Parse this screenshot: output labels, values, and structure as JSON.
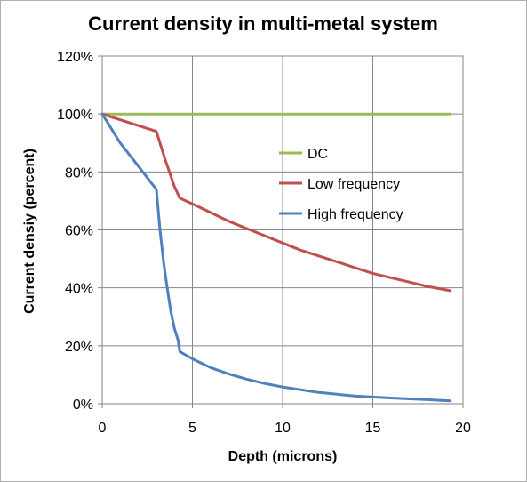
{
  "chart_data": {
    "type": "line",
    "title": "Current density in multi-metal system",
    "xlabel": "Depth (microns)",
    "ylabel": "Current densiy (percent)",
    "xlim": [
      0,
      20
    ],
    "ylim": [
      0,
      120
    ],
    "x_ticks": [
      "0",
      "5",
      "10",
      "15",
      "20"
    ],
    "y_ticks": [
      "0%",
      "20%",
      "40%",
      "60%",
      "80%",
      "100%",
      "120%"
    ],
    "grid": true,
    "legend_position": "center-right",
    "series": [
      {
        "name": "DC",
        "color": "#9bbb59",
        "x": [
          0,
          19.3
        ],
        "y": [
          100,
          100
        ]
      },
      {
        "name": "Low frequency",
        "color": "#c0504d",
        "x": [
          0,
          1,
          2,
          3,
          3.5,
          4,
          4.3,
          5,
          6,
          7,
          8,
          9,
          10,
          11,
          12,
          13,
          14,
          15,
          16,
          17,
          18,
          19.3
        ],
        "y": [
          100,
          98,
          96,
          94,
          84,
          75,
          71,
          69,
          66,
          63,
          60.5,
          58,
          55.5,
          53,
          51,
          49,
          47,
          45,
          43.5,
          42,
          40.5,
          39
        ]
      },
      {
        "name": "High frequency",
        "color": "#4f81bd",
        "x": [
          0,
          1,
          2,
          3,
          3.2,
          3.4,
          3.6,
          3.8,
          4,
          4.2,
          4.3,
          5,
          6,
          7,
          8,
          9,
          10,
          12,
          14,
          16,
          18,
          19.3
        ],
        "y": [
          100,
          90,
          82,
          74,
          60,
          49,
          40,
          32,
          26,
          22,
          18,
          15.5,
          12.5,
          10.3,
          8.5,
          7,
          5.8,
          3.9,
          2.7,
          2,
          1.4,
          1
        ]
      }
    ]
  }
}
